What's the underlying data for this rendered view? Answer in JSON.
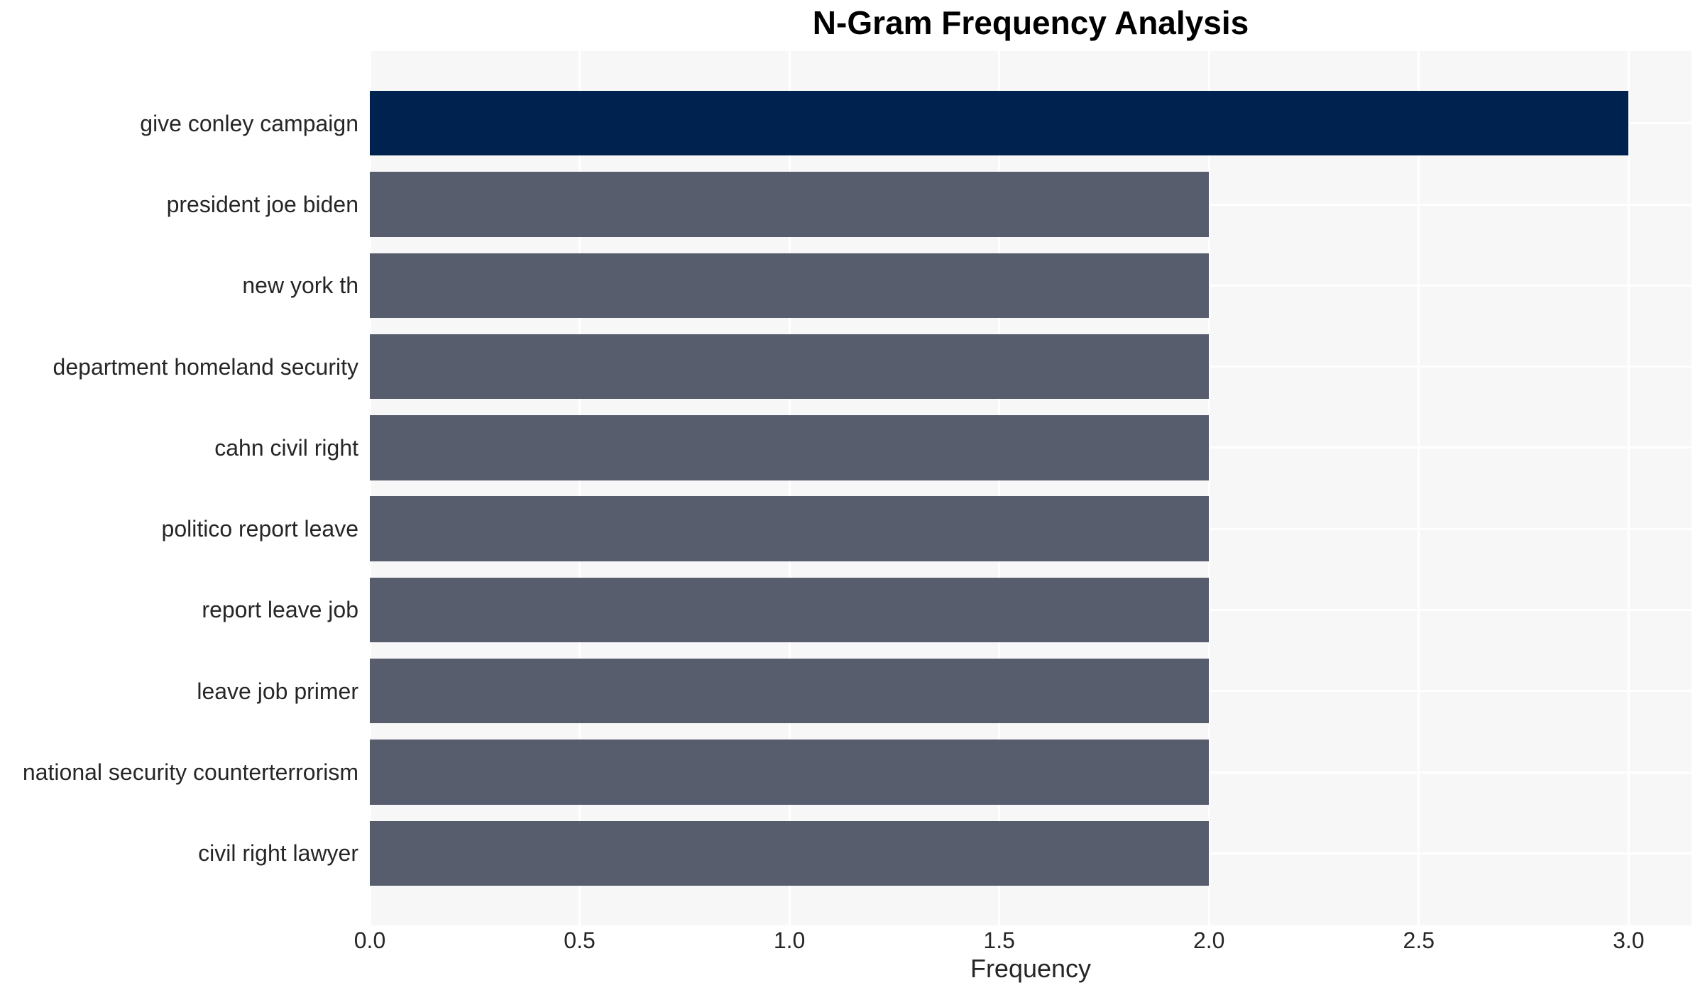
{
  "chart_data": {
    "type": "bar",
    "orientation": "horizontal",
    "title": "N-Gram Frequency Analysis",
    "xlabel": "Frequency",
    "ylabel": "",
    "categories": [
      "give conley campaign",
      "president joe biden",
      "new york th",
      "department homeland security",
      "cahn civil right",
      "politico report leave",
      "report leave job",
      "leave job primer",
      "national security counterterrorism",
      "civil right lawyer"
    ],
    "values": [
      3,
      2,
      2,
      2,
      2,
      2,
      2,
      2,
      2,
      2
    ],
    "bar_colors": [
      "#00224E",
      "#575D6D",
      "#575D6D",
      "#575D6D",
      "#575D6D",
      "#575D6D",
      "#575D6D",
      "#575D6D",
      "#575D6D",
      "#575D6D"
    ],
    "xlim": [
      0,
      3.15
    ],
    "xticks": [
      0,
      0.5,
      1,
      1.5,
      2,
      2.5,
      3
    ],
    "xtick_labels": [
      "0.0",
      "0.5",
      "1.0",
      "1.5",
      "2.0",
      "2.5",
      "3.0"
    ],
    "grid": true,
    "legend": false
  },
  "colors": {
    "figure_background": "#FFFFFF",
    "plot_background": "#F7F7F7",
    "gridline": "#FFFFFF",
    "bar_highlight": "#00224E",
    "bar_default": "#575D6D",
    "tick_text": "#262626",
    "title_text": "#000000"
  }
}
